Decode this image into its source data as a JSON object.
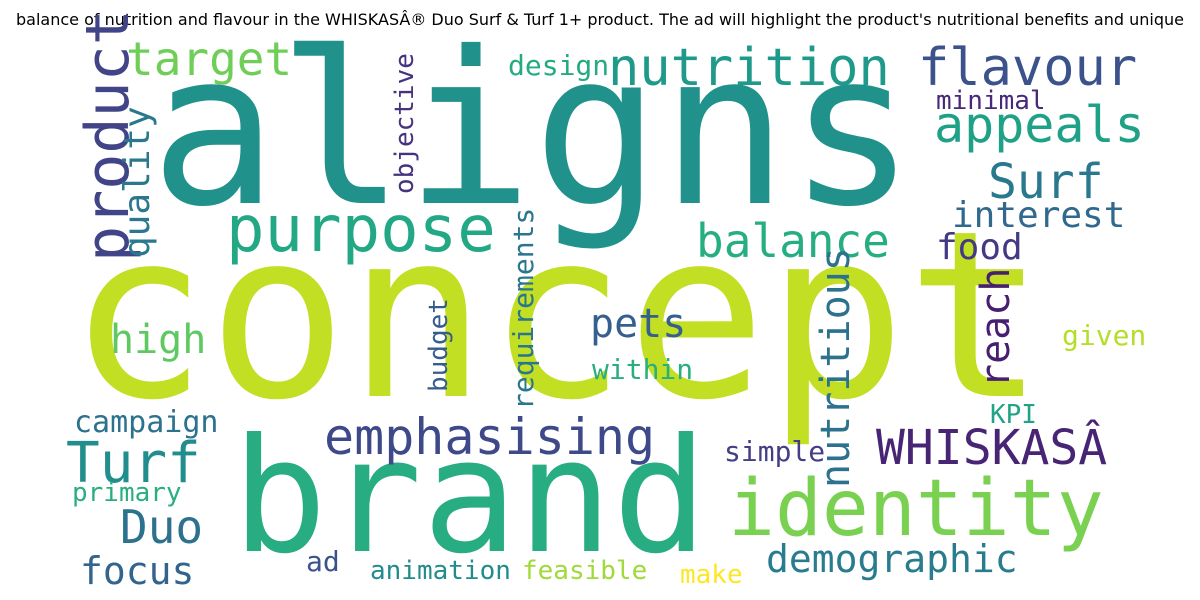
{
  "title": "balance of nutrition and flavour in the WHISKASÂ® Duo Surf & Turf 1+ product. The ad will highlight the product's nutritional benefits and unique",
  "words": {
    "aligns": {
      "text": "aligns",
      "color": "#21918c"
    },
    "concept": {
      "text": "concept",
      "color": "#c2df23"
    },
    "brand": {
      "text": "brand",
      "color": "#27ad81"
    },
    "identity": {
      "text": "identity",
      "color": "#7ad151"
    },
    "purpose": {
      "text": "purpose",
      "color": "#22a884"
    },
    "nutrition": {
      "text": "nutrition",
      "color": "#1f9a8a"
    },
    "flavour": {
      "text": "flavour",
      "color": "#3b528b"
    },
    "target": {
      "text": "target",
      "color": "#6ece58"
    },
    "appeals": {
      "text": "appeals",
      "color": "#1fa187"
    },
    "surf": {
      "text": "Surf",
      "color": "#2a788e"
    },
    "interest": {
      "text": "interest",
      "color": "#31688e"
    },
    "balance": {
      "text": "balance",
      "color": "#26ad81"
    },
    "product": {
      "text": "product",
      "color": "#414487"
    },
    "quality": {
      "text": "quality",
      "color": "#2a788e"
    },
    "food": {
      "text": "food",
      "color": "#443983"
    },
    "design": {
      "text": "design",
      "color": "#25ab82"
    },
    "minimal": {
      "text": "minimal",
      "color": "#482878"
    },
    "objective": {
      "text": "objective",
      "color": "#46327e"
    },
    "emphasising": {
      "text": "emphasising",
      "color": "#3e4989"
    },
    "whiskas": {
      "text": "WHISKASÂ",
      "color": "#482475"
    },
    "turf": {
      "text": "Turf",
      "color": "#218e8d"
    },
    "duo": {
      "text": "Duo",
      "color": "#2c718e"
    },
    "high": {
      "text": "high",
      "color": "#5ec962"
    },
    "pets": {
      "text": "pets",
      "color": "#355f8d"
    },
    "within": {
      "text": "within",
      "color": "#29af7f"
    },
    "reach": {
      "text": "reach",
      "color": "#481f70"
    },
    "nutritious": {
      "text": "nutritious",
      "color": "#2c728e"
    },
    "given": {
      "text": "given",
      "color": "#b5de2b"
    },
    "kpi": {
      "text": "KPI",
      "color": "#20a386"
    },
    "simple": {
      "text": "simple",
      "color": "#433e85"
    },
    "campaign": {
      "text": "campaign",
      "color": "#2c728e"
    },
    "primary": {
      "text": "primary",
      "color": "#29af7f"
    },
    "focus": {
      "text": "focus",
      "color": "#32648e"
    },
    "demographic": {
      "text": "demographic",
      "color": "#287c8e"
    },
    "ad": {
      "text": "ad",
      "color": "#3b528b"
    },
    "animation": {
      "text": "animation",
      "color": "#228c8d"
    },
    "feasible": {
      "text": "feasible",
      "color": "#a0da39"
    },
    "make": {
      "text": "make",
      "color": "#fde725"
    },
    "budget": {
      "text": "budget",
      "color": "#365c8d"
    },
    "requirements": {
      "text": "requirements",
      "color": "#2a768e"
    }
  }
}
